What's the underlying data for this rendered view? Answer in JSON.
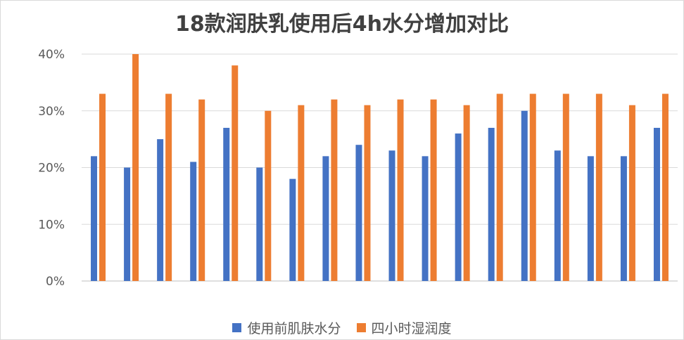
{
  "chart_data": {
    "type": "bar",
    "title": "18款润肤乳使用后4h水分增加对比",
    "xlabel": "",
    "ylabel": "",
    "ylim": [
      0,
      40
    ],
    "ytick_values": [
      0,
      10,
      20,
      30,
      40
    ],
    "ytick_labels": [
      "0%",
      "10%",
      "20%",
      "30%",
      "40%"
    ],
    "categories": [
      "",
      "",
      "",
      "",
      "",
      "",
      "",
      "",
      "",
      "",
      "",
      "",
      "",
      "",
      "",
      "",
      "",
      ""
    ],
    "series": [
      {
        "name": "使用前肌肤水分",
        "color": "#4472c4",
        "values": [
          22,
          20,
          25,
          21,
          27,
          20,
          18,
          22,
          24,
          23,
          22,
          26,
          27,
          30,
          23,
          22,
          22,
          27
        ]
      },
      {
        "name": "四小时湿润度",
        "color": "#ed7d31",
        "values": [
          33,
          40,
          33,
          32,
          38,
          30,
          31,
          32,
          31,
          32,
          32,
          31,
          33,
          33,
          33,
          33,
          31,
          33
        ]
      }
    ],
    "grid": true,
    "legend_position": "bottom"
  }
}
